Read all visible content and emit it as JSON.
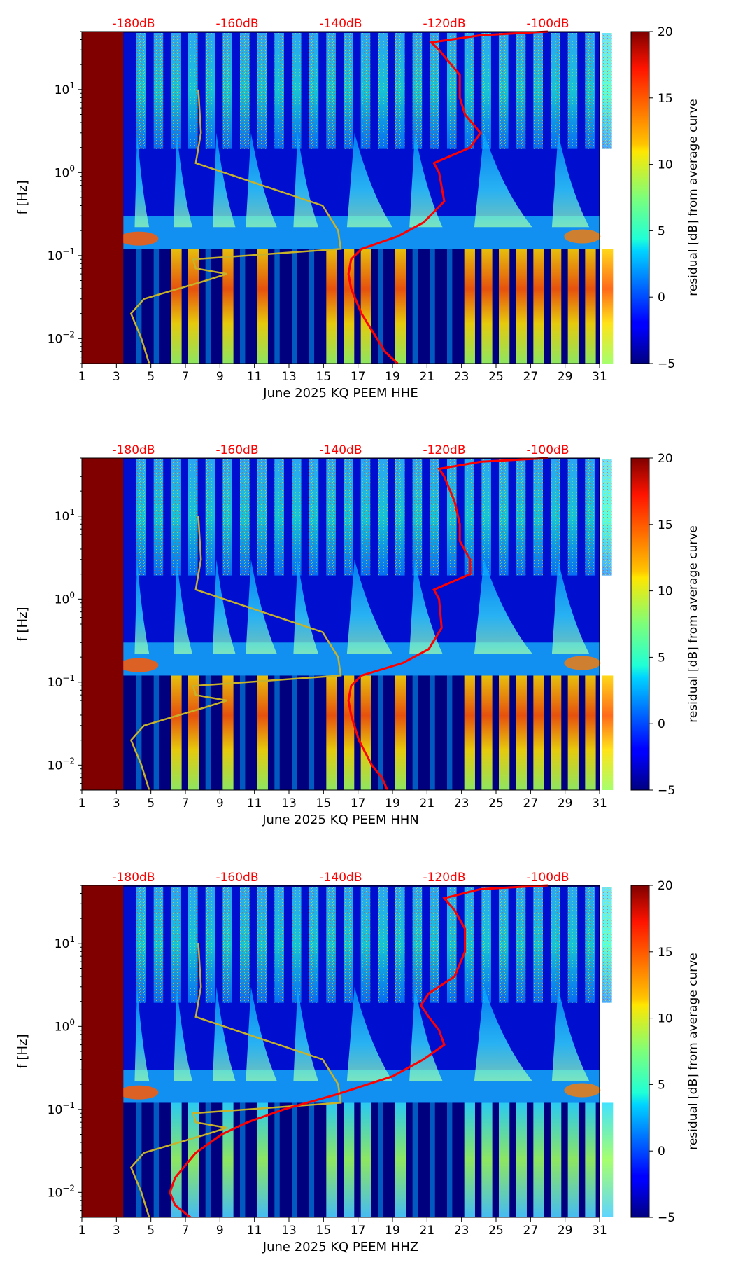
{
  "chart_data": {
    "type": "heatmap",
    "colormap": "jet",
    "ylabel": "f [Hz]",
    "colorbar": {
      "label": "residual [dB] from average curve",
      "range": [
        -5,
        20
      ],
      "ticks": [
        "−5",
        "0",
        "5",
        "10",
        "15",
        "20"
      ],
      "tick_values": [
        -5,
        0,
        5,
        10,
        15,
        20
      ]
    },
    "x_ticks": [
      "1",
      "3",
      "5",
      "7",
      "9",
      "11",
      "13",
      "15",
      "17",
      "19",
      "21",
      "23",
      "25",
      "27",
      "29",
      "31"
    ],
    "x_tick_values": [
      1,
      3,
      5,
      7,
      9,
      11,
      13,
      15,
      17,
      19,
      21,
      23,
      25,
      27,
      29,
      31
    ],
    "xlim": [
      1,
      31
    ],
    "y_ticks": [
      "10−2",
      "10−1",
      "100",
      "101"
    ],
    "y_tick_base": "10",
    "y_tick_exponents": [
      "−2",
      "−1",
      "0",
      "1"
    ],
    "y_tick_values": [
      0.01,
      0.1,
      1,
      10
    ],
    "ylim_hz": [
      0.005,
      50
    ],
    "top_axis": {
      "color": "#ff0000",
      "labels": [
        "-180dB",
        "-160dB",
        "-140dB",
        "-120dB",
        "-100dB"
      ],
      "values": [
        -180,
        -160,
        -140,
        -120,
        -100
      ]
    },
    "missing_data_until_day": 3.4,
    "missing_data_color": "#800000",
    "reference_curve_color": "#c8b22a",
    "median_curve_color": "#ff0000",
    "reference_curve_db": [
      [
        0.005,
        -177
      ],
      [
        0.01,
        -178.5
      ],
      [
        0.02,
        -180.5
      ],
      [
        0.03,
        -178
      ],
      [
        0.05,
        -166
      ],
      [
        0.06,
        -162
      ],
      [
        0.07,
        -168
      ],
      [
        0.09,
        -168.5
      ],
      [
        0.12,
        -140
      ],
      [
        0.2,
        -140.5
      ],
      [
        0.4,
        -143.5
      ],
      [
        1.3,
        -168
      ],
      [
        3,
        -167
      ],
      [
        10,
        -167.5
      ]
    ],
    "panels": [
      {
        "component": "HHE",
        "xlabel": "June 2025 KQ PEEM  HHE",
        "median_curve_db": [
          [
            0.005,
            -129
          ],
          [
            0.007,
            -131.5
          ],
          [
            0.01,
            -133
          ],
          [
            0.02,
            -136
          ],
          [
            0.04,
            -138
          ],
          [
            0.06,
            -138.5
          ],
          [
            0.09,
            -138
          ],
          [
            0.12,
            -136
          ],
          [
            0.17,
            -129
          ],
          [
            0.25,
            -124
          ],
          [
            0.45,
            -120
          ],
          [
            1.0,
            -121
          ],
          [
            1.3,
            -122
          ],
          [
            2.0,
            -115
          ],
          [
            3.0,
            -113
          ],
          [
            5.0,
            -116
          ],
          [
            8.0,
            -117
          ],
          [
            15.0,
            -117
          ],
          [
            30.0,
            -121
          ],
          [
            37.0,
            -122.5
          ],
          [
            45.0,
            -113
          ],
          [
            50.0,
            -100
          ]
        ]
      },
      {
        "component": "HHN",
        "xlabel": "June 2025 KQ PEEM  HHN",
        "median_curve_db": [
          [
            0.005,
            -131
          ],
          [
            0.007,
            -132
          ],
          [
            0.01,
            -134
          ],
          [
            0.02,
            -136.5
          ],
          [
            0.04,
            -138
          ],
          [
            0.06,
            -138.5
          ],
          [
            0.09,
            -138
          ],
          [
            0.12,
            -136
          ],
          [
            0.17,
            -128
          ],
          [
            0.25,
            -123
          ],
          [
            0.45,
            -120.5
          ],
          [
            1.0,
            -121
          ],
          [
            1.3,
            -122
          ],
          [
            2.0,
            -115
          ],
          [
            3.0,
            -115
          ],
          [
            5.0,
            -117
          ],
          [
            8.0,
            -117
          ],
          [
            15.0,
            -118
          ],
          [
            30.0,
            -120
          ],
          [
            37.0,
            -121
          ],
          [
            45.0,
            -113
          ],
          [
            50.0,
            -100
          ]
        ]
      },
      {
        "component": "HHZ",
        "xlabel": "June 2025 KQ PEEM  HHZ",
        "median_curve_db": [
          [
            0.005,
            -169
          ],
          [
            0.007,
            -172
          ],
          [
            0.01,
            -173
          ],
          [
            0.015,
            -172
          ],
          [
            0.03,
            -168
          ],
          [
            0.05,
            -163
          ],
          [
            0.07,
            -158
          ],
          [
            0.1,
            -151
          ],
          [
            0.15,
            -141
          ],
          [
            0.25,
            -130
          ],
          [
            0.4,
            -124
          ],
          [
            0.6,
            -120
          ],
          [
            0.9,
            -121
          ],
          [
            1.3,
            -123
          ],
          [
            1.8,
            -124.5
          ],
          [
            2.5,
            -123
          ],
          [
            4.0,
            -118
          ],
          [
            8.0,
            -116
          ],
          [
            15.0,
            -116
          ],
          [
            25.0,
            -118
          ],
          [
            35.0,
            -120
          ],
          [
            45.0,
            -113
          ],
          [
            50.0,
            -100
          ]
        ]
      }
    ]
  }
}
